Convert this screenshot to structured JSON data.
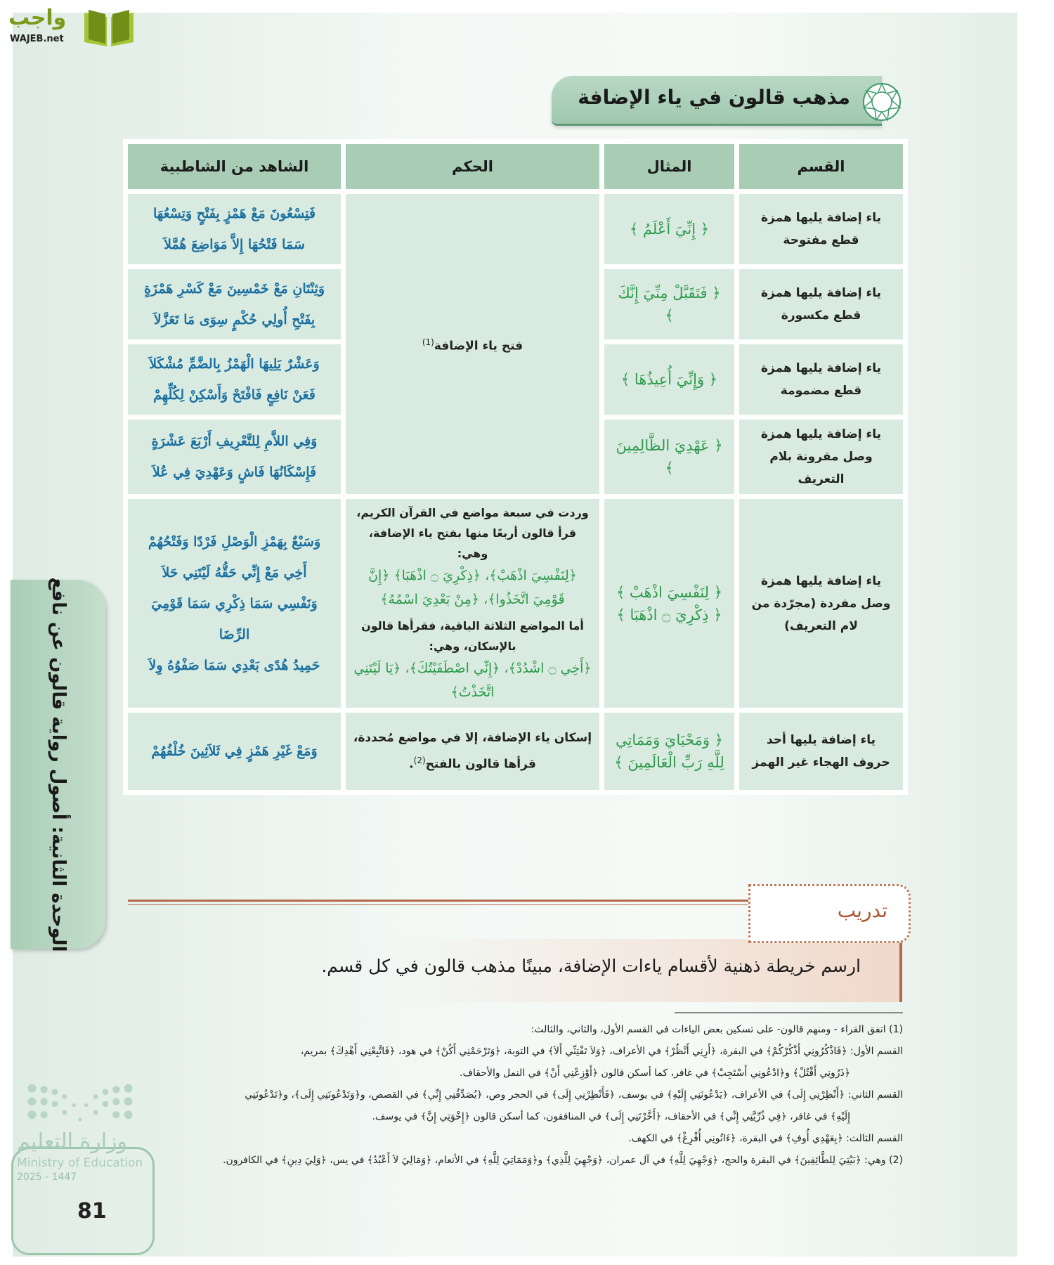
{
  "logo": {
    "name": "واجب",
    "sub": "WAJEB.net"
  },
  "title": "مذهب قالون في ياء الإضافة",
  "table": {
    "headers": [
      "القسم",
      "المثال",
      "الحكم",
      "الشاهد من الشاطبية"
    ],
    "rows": [
      {
        "qism": "ياء إضافة يليها همزة قطع مفتوحة",
        "mithal": "﴿ إِنِّيَ أَعْلَمُ ﴾",
        "shahid": [
          "فَتِسْعُونَ مَعْ هَمْزٍ بِفَتْحٍ وَتِسْعُهَا",
          "سَمَا فَتْحُهَا إِلاَّ مَوَاضِعَ هُمَّلاَ"
        ]
      },
      {
        "qism": "ياء إضافة يليها همزة قطع مكسورة",
        "mithal": "﴿ فَتَقَبَّلْ مِنِّيَ إِنَّكَ ﴾",
        "shahid": [
          "وَثِنْتَانِ مَعْ خَمْسِينَ مَعْ كَسْرِ هَمْزَةٍ",
          "بِفَتْحِ أُولِي حُكْمٍ سِوَى مَا تَعَزَّلاَ"
        ]
      },
      {
        "qism": "ياء إضافة يليها همزة قطع مضمومة",
        "mithal": "﴿ وَإِنِّيَ أُعِيذُهَا ﴾",
        "shahid": [
          "وَعَشْرٌ يَلِيهَا الْهَمْزُ بِالضَّمِّ مُشْكَلاَ",
          "فَعَنْ نَافِعٍ فَافْتَحْ وَأَسْكِنْ لِكُلِّهِمْ"
        ]
      },
      {
        "qism": "ياء إضافة يليها همزة وصل مقرونة بلام التعريف",
        "mithal": "﴿ عَهْدِيَ الظَّالِمِينَ ﴾",
        "shahid": [
          "وَفِي اللاَّمِ لِلتَّعْرِيفِ أَرْبَعَ عَشْرَةٍ",
          "فَإِسْكَانُهَا فَاشٍ وَعَهْدِيَ فِي عُلاَ"
        ]
      },
      {
        "qism": "ياء إضافة يليها همزة وصل مفردة (مجرّدة من لام التعريف)",
        "mithal": [
          "﴿ لِنَفْسِيَ اذْهَبْ ﴾",
          "﴿ ذِكْرِيَ ۝ اذْهَبَا ﴾"
        ],
        "hukm": {
          "p1": "وردت في سبعة مواضع في القرآن الكريم، قرأ قالون أربعًا منها بفتح ياء الإضافة، وهي:",
          "q1": "﴿لِنَفْسِيَ اذْهَبْ﴾، ﴿ذِكْرِيَ ۝ اذْهَبَا﴾ ﴿إِنَّ قَوْمِيَ اتَّخَذُوا﴾، ﴿مِنْ بَعْدِيَ اسْمُهُ﴾",
          "p2": "أما المواضع الثلاثة الباقية، فقرأها قالون بالإسكان، وهي:",
          "q2": "﴿أَخِي ۝ اشْدُدْ﴾، ﴿إِنِّي اصْطَفَيْتُكَ﴾، ﴿يَا لَيْتَنِي اتَّخَذْتُ﴾"
        },
        "shahid": [
          "وَسَبْعٌ بِهَمْزِ الْوَصْلِ فَرْدًا وَفَتْحُهُمْ",
          "أَخِي مَعْ إِنِّي حَقُّهُ لَيْتَنِي حَلاَ",
          "وَنَفْسِي سَمَا ذِكْرِي سَمَا قَوْمِيَ الرِّضَا",
          "حَمِيدُ هُدًى بَعْدِي سَمَا صَفْوُهُ وِلاَ"
        ]
      },
      {
        "qism": "ياء إضافة يليها أحد حروف الهجاء غير الهمز",
        "mithal": [
          "﴿ وَمَحْيَايَ وَمَمَاتِي",
          "لِلَّهِ رَبِّ الْعَالَمِينَ ﴾"
        ],
        "hukm": {
          "p1": "إسكان ياء الإضافة، إلا في مواضع مُحددة، قرأها قالون بالفتح",
          "ref": "(2)"
        },
        "shahid": [
          "وَمَعْ غَيْرِ هَمْزٍ فِي ثَلاَثِينَ خُلْفُهُمْ"
        ]
      }
    ],
    "merged_hukm": "فتح ياء الإضافة",
    "merged_ref": "(1)"
  },
  "side_tab": "الوحدة الثانية: أصول رواية قالون عن نافع",
  "training": {
    "label": "تدريب",
    "text": "ارسم خريطة ذهنية لأقسام ياءات الإضافة، مبينًا مذهب قالون في كل قسم."
  },
  "footnotes": [
    "(1) اتفق القراء - ومنهم قالون- على تسكين بعض الياءات في القسم الأول، والثاني، والثالث:",
    "القسم الأول: ﴿فَاذْكُرُونِي أَذْكُرْكُمْ﴾ في البقرة، ﴿أَرِنِي أَنْظُرْ﴾ في الأعراف، ﴿وَلاَ تَفْتِنِّي أَلاَ﴾ في التوبة، ﴿وَتَرْحَمْنِي أَكُنْ﴾ في هود، ﴿فَاتَّبِعْنِي أَهْدِكَ﴾ بمريم،",
    "﴿ذَرُونِي أَقْتُلْ﴾ و﴿ادْعُونِي أَسْتَجِبْ﴾ في غافر، كما أسكن قالون ﴿أَوْزِعْنِي أَنْ﴾ في النمل والأحقاف.",
    "القسم الثاني: ﴿أَنْظِرْنِي إِلَى﴾ في الأعراف، ﴿يَدْعُونَنِي إِلَيْهِ﴾ في يوسف، ﴿فَأَنْظِرْنِي إِلَى﴾ في الحجر وص، ﴿يُصَدِّقُنِي إِنِّي﴾ في القصص، و﴿وَتَدْعُونَنِي إِلَى﴾، و﴿تَدْعُونَنِي",
    "إِلَيْهِ﴾ في غافر، ﴿فِي ذُرِّيَّتِي إِنِّي﴾ في الأحقاف، ﴿أَخَّرْتَنِي إِلَى﴾ في المنافقون، كما أسكن قالون ﴿إِخْوَتِي إِنَّ﴾ في يوسف.",
    "القسم الثالث: ﴿بِعَهْدِي أُوفِ﴾ في البقرة، ﴿ءَاتُونِي أُفْرِغْ﴾ في الكهف.",
    "(2) وهي: ﴿بَيْتِيَ لِلطَّائِفِينَ﴾ في البقرة والحج، ﴿وَجْهِيَ لِلَّهِ﴾ في آل عمران، ﴿وَجْهِيَ لِلَّذِي﴾ و﴿وَمَمَاتِيَ لِلَّهِ﴾ في الأنعام، ﴿وَمَالِيَ لاَ أَعْبُدُ﴾ في يس، ﴿وَلِيَ دِينِ﴾ في الكافرون."
  ],
  "ministry": {
    "ar": "وزارة التعليم",
    "en": "Ministry of Education",
    "year": "2025 - 1447"
  },
  "page_number": "81",
  "colors": {
    "header_green": "#a8cdb4",
    "cell_green": "#d9ebe0",
    "quran_green": "#2e9a4c",
    "verse_blue": "#1b6fa0",
    "training_brown": "#b0522e"
  }
}
